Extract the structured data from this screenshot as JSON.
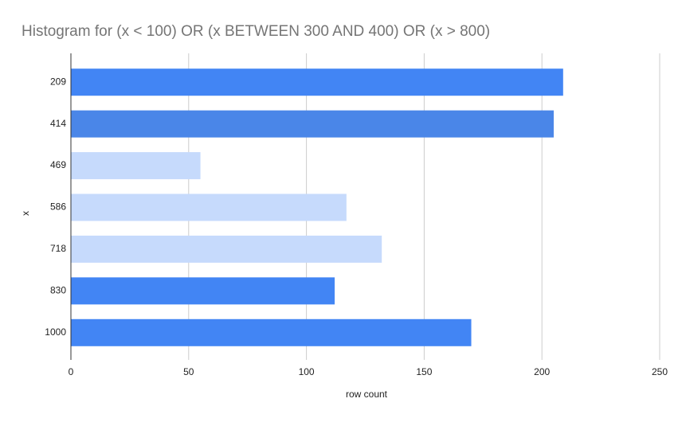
{
  "chart_data": {
    "type": "bar",
    "orientation": "horizontal",
    "title": "Histogram for (x < 100) OR (x BETWEEN 300 AND 400) OR (x > 800)",
    "x_label": "row count",
    "y_label": "x",
    "categories": [
      "209",
      "414",
      "469",
      "586",
      "718",
      "830",
      "1000"
    ],
    "values": [
      209,
      205,
      55,
      117,
      132,
      112,
      170
    ],
    "colors": [
      "#4285f4",
      "#4a86e8",
      "#c6dafc",
      "#c6dafc",
      "#c6dafc",
      "#4285f4",
      "#4285f4"
    ],
    "xlim": [
      0,
      250
    ],
    "xticks": [
      0,
      50,
      100,
      150,
      200,
      250
    ],
    "grid": true
  }
}
